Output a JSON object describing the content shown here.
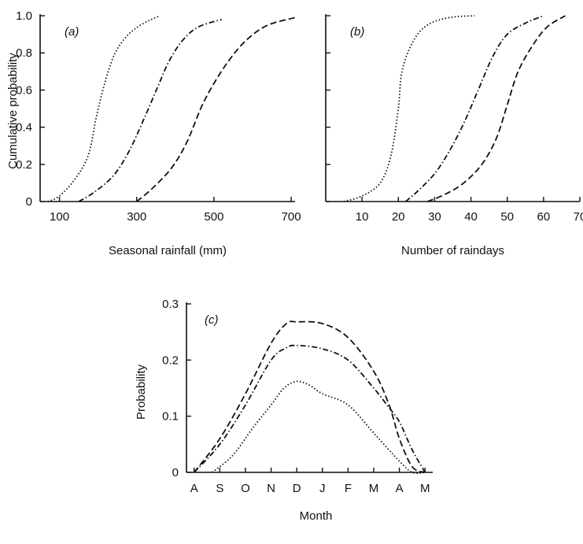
{
  "chart_data": [
    {
      "type": "line",
      "panel_label": "(a)",
      "xlabel": "Seasonal rainfall (mm)",
      "ylabel": "Cumulative probability",
      "xlim": [
        50,
        710
      ],
      "ylim": [
        0,
        1
      ],
      "x_ticks": [
        100,
        300,
        500,
        700
      ],
      "x_tick_labels": [
        "100",
        "300",
        "500",
        "700"
      ],
      "y_ticks": [
        0,
        0.2,
        0.4,
        0.6,
        0.8,
        1.0
      ],
      "y_tick_labels": [
        "0",
        "0.2",
        "0.4",
        "0.6",
        "0.8",
        "1.0"
      ],
      "series": [
        {
          "style": "dotted",
          "points": [
            [
              70,
              0
            ],
            [
              100,
              0.03
            ],
            [
              140,
              0.12
            ],
            [
              175,
              0.25
            ],
            [
              195,
              0.45
            ],
            [
              215,
              0.62
            ],
            [
              240,
              0.78
            ],
            [
              270,
              0.88
            ],
            [
              310,
              0.95
            ],
            [
              360,
              1.0
            ]
          ]
        },
        {
          "style": "dashdot",
          "points": [
            [
              150,
              0
            ],
            [
              190,
              0.05
            ],
            [
              240,
              0.14
            ],
            [
              280,
              0.27
            ],
            [
              320,
              0.45
            ],
            [
              355,
              0.62
            ],
            [
              385,
              0.76
            ],
            [
              420,
              0.87
            ],
            [
              460,
              0.94
            ],
            [
              520,
              0.98
            ]
          ]
        },
        {
          "style": "dashed",
          "points": [
            [
              300,
              0
            ],
            [
              340,
              0.07
            ],
            [
              390,
              0.18
            ],
            [
              430,
              0.32
            ],
            [
              470,
              0.52
            ],
            [
              510,
              0.67
            ],
            [
              550,
              0.79
            ],
            [
              590,
              0.88
            ],
            [
              640,
              0.95
            ],
            [
              710,
              0.99
            ]
          ]
        }
      ]
    },
    {
      "type": "line",
      "panel_label": "(b)",
      "xlabel": "Number of raindays",
      "ylabel": "",
      "xlim": [
        0,
        70
      ],
      "ylim": [
        0,
        1
      ],
      "x_ticks": [
        10,
        20,
        30,
        40,
        50,
        60,
        70
      ],
      "x_tick_labels": [
        "10",
        "20",
        "30",
        "40",
        "50",
        "60",
        "70"
      ],
      "y_ticks": [
        0,
        0.2,
        0.4,
        0.6,
        0.8,
        1.0
      ],
      "series": [
        {
          "style": "dotted",
          "points": [
            [
              5,
              0
            ],
            [
              10,
              0.03
            ],
            [
              15,
              0.1
            ],
            [
              18,
              0.25
            ],
            [
              20,
              0.5
            ],
            [
              21,
              0.7
            ],
            [
              24,
              0.86
            ],
            [
              28,
              0.95
            ],
            [
              34,
              0.99
            ],
            [
              41,
              1.0
            ]
          ]
        },
        {
          "style": "dashdot",
          "points": [
            [
              22,
              0
            ],
            [
              25,
              0.05
            ],
            [
              30,
              0.15
            ],
            [
              34,
              0.27
            ],
            [
              38,
              0.42
            ],
            [
              42,
              0.6
            ],
            [
              46,
              0.78
            ],
            [
              50,
              0.9
            ],
            [
              55,
              0.96
            ],
            [
              60,
              1.0
            ]
          ]
        },
        {
          "style": "dashed",
          "points": [
            [
              28,
              0
            ],
            [
              33,
              0.04
            ],
            [
              38,
              0.1
            ],
            [
              43,
              0.2
            ],
            [
              47,
              0.34
            ],
            [
              50,
              0.52
            ],
            [
              53,
              0.7
            ],
            [
              57,
              0.84
            ],
            [
              61,
              0.94
            ],
            [
              66,
              1.0
            ]
          ]
        }
      ]
    },
    {
      "type": "line",
      "panel_label": "(c)",
      "xlabel": "Month",
      "ylabel": "Probability",
      "categories": [
        "A",
        "S",
        "O",
        "N",
        "D",
        "J",
        "F",
        "M",
        "A",
        "M"
      ],
      "ylim": [
        0,
        0.3
      ],
      "y_ticks": [
        0,
        0.1,
        0.2,
        0.3
      ],
      "y_tick_labels": [
        "0",
        "0.1",
        "0.2",
        "0.3"
      ],
      "series": [
        {
          "style": "dashed",
          "points": [
            [
              0,
              0
            ],
            [
              1,
              0.06
            ],
            [
              2,
              0.14
            ],
            [
              3,
              0.23
            ],
            [
              3.6,
              0.265
            ],
            [
              4,
              0.268
            ],
            [
              5,
              0.265
            ],
            [
              6,
              0.24
            ],
            [
              7,
              0.18
            ],
            [
              7.6,
              0.12
            ],
            [
              8,
              0.06
            ],
            [
              8.5,
              0.01
            ],
            [
              9,
              0
            ]
          ]
        },
        {
          "style": "dashdot",
          "points": [
            [
              0,
              0
            ],
            [
              1,
              0.05
            ],
            [
              2,
              0.12
            ],
            [
              3,
              0.2
            ],
            [
              3.6,
              0.222
            ],
            [
              4,
              0.226
            ],
            [
              5,
              0.22
            ],
            [
              6,
              0.2
            ],
            [
              7,
              0.15
            ],
            [
              7.6,
              0.115
            ],
            [
              8,
              0.09
            ],
            [
              8.5,
              0.04
            ],
            [
              9,
              0
            ]
          ]
        },
        {
          "style": "dotted",
          "points": [
            [
              0.7,
              0
            ],
            [
              1.5,
              0.03
            ],
            [
              2.3,
              0.08
            ],
            [
              3,
              0.12
            ],
            [
              3.5,
              0.15
            ],
            [
              4,
              0.162
            ],
            [
              4.5,
              0.155
            ],
            [
              5,
              0.14
            ],
            [
              6,
              0.12
            ],
            [
              7,
              0.07
            ],
            [
              8,
              0.02
            ],
            [
              8.5,
              0
            ],
            [
              9,
              0
            ]
          ]
        }
      ]
    }
  ]
}
